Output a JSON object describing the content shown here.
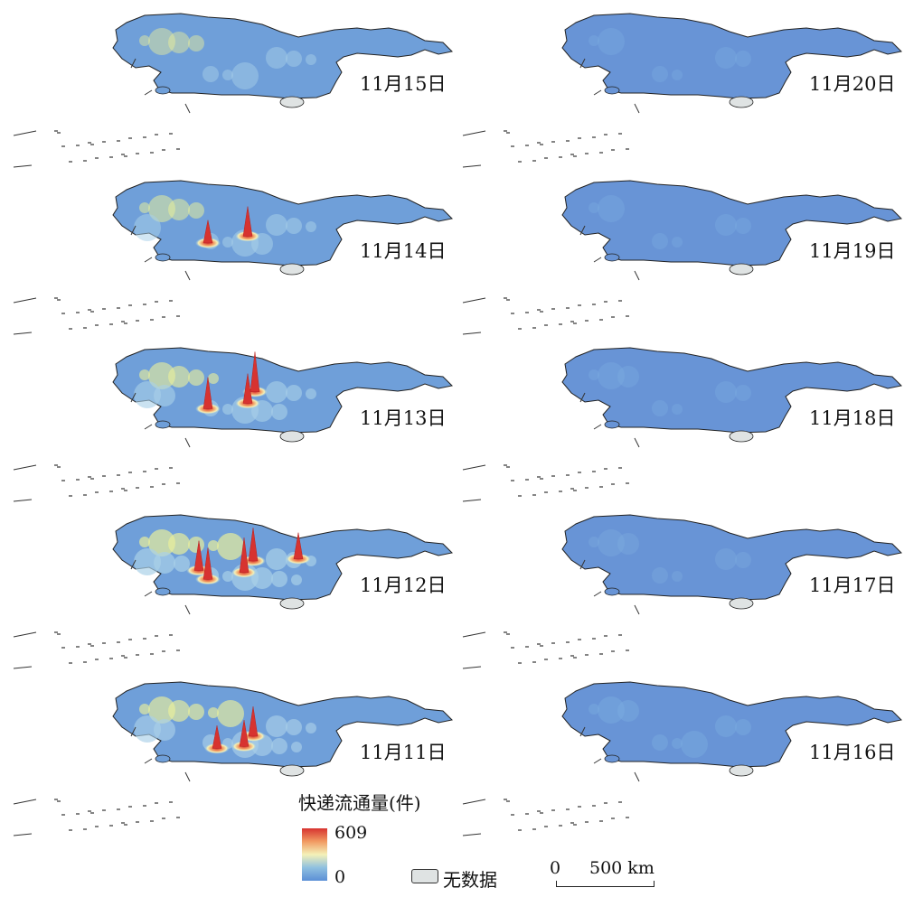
{
  "maps": [
    {
      "date": "11月15日",
      "intensity": 0.3,
      "peaks": []
    },
    {
      "date": "11月14日",
      "intensity": 0.45,
      "peaks": [
        {
          "lon": 0.52,
          "lat": 0.62,
          "v": 0.55
        },
        {
          "lon": 0.3,
          "lat": 0.72,
          "v": 0.35
        }
      ]
    },
    {
      "date": "11月13日",
      "intensity": 0.65,
      "peaks": [
        {
          "lon": 0.56,
          "lat": 0.45,
          "v": 0.85
        },
        {
          "lon": 0.3,
          "lat": 0.7,
          "v": 0.6
        },
        {
          "lon": 0.52,
          "lat": 0.62,
          "v": 0.55
        }
      ]
    },
    {
      "date": "11月12日",
      "intensity": 0.85,
      "peaks": [
        {
          "lon": 0.55,
          "lat": 0.48,
          "v": 0.65
        },
        {
          "lon": 0.25,
          "lat": 0.62,
          "v": 0.55
        },
        {
          "lon": 0.3,
          "lat": 0.75,
          "v": 0.6
        },
        {
          "lon": 0.5,
          "lat": 0.65,
          "v": 0.7
        },
        {
          "lon": 0.8,
          "lat": 0.45,
          "v": 0.45
        }
      ]
    },
    {
      "date": "11月11日",
      "intensity": 0.75,
      "peaks": [
        {
          "lon": 0.55,
          "lat": 0.6,
          "v": 0.55
        },
        {
          "lon": 0.5,
          "lat": 0.75,
          "v": 0.45
        },
        {
          "lon": 0.35,
          "lat": 0.78,
          "v": 0.35
        }
      ]
    },
    {
      "date": "11月20日",
      "intensity": 0.02,
      "peaks": []
    },
    {
      "date": "11月19日",
      "intensity": 0.02,
      "peaks": []
    },
    {
      "date": "11月18日",
      "intensity": 0.04,
      "peaks": []
    },
    {
      "date": "11月17日",
      "intensity": 0.08,
      "peaks": []
    },
    {
      "date": "11月16日",
      "intensity": 0.12,
      "peaks": []
    }
  ],
  "legend": {
    "title": "快递流通量(件)",
    "max": "609",
    "min": "0",
    "ramp_colors": [
      "#5b8fd6",
      "#8fc0e0",
      "#f4f1b8",
      "#f19a62",
      "#d73330"
    ]
  },
  "nodata": {
    "label": "无数据",
    "color": "#dfe3e3"
  },
  "scale": {
    "zero": "0",
    "distance": "500 km"
  }
}
